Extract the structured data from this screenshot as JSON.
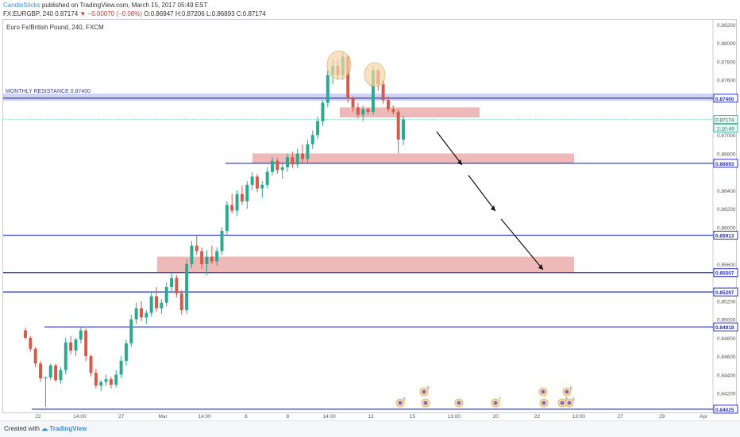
{
  "header": {
    "author": "CandleSticks",
    "published": "published on TradingView.com, March 15, 2017 05:49 EST",
    "symbol": "FX:EURGBP, 240",
    "price": "0.87174",
    "change": "▼ −0.00070 (−0.08%)",
    "ohlc": "O:0.86947 H:0.87206 L:0.86893 C:0.87174"
  },
  "plot_title": "Euro Fx/British Pound, 240, FXCM",
  "footer": {
    "created_with": "Created with",
    "brand": "TradingView"
  },
  "colors": {
    "up": "#29a98f",
    "down": "#d45a4a",
    "level_line": "#2530c8",
    "zone_fill": "#e8a2a2",
    "resistance_fill": "#aab0e8",
    "annotation_fill": "#f6d7a7"
  },
  "chart_data": {
    "type": "candlestick",
    "title": "Euro Fx/British Pound, 240, FXCM",
    "y_axis": {
      "range": [
        0.8399,
        0.8825
      ],
      "ticks": [
        "0.88200",
        "0.88000",
        "0.87800",
        "0.87600",
        "0.87000",
        "0.86800",
        "0.86400",
        "0.86200",
        "0.86000",
        "0.85600",
        "0.85200",
        "0.85000",
        "0.84800",
        "0.84600",
        "0.84400",
        "0.84200"
      ]
    },
    "x_axis": {
      "ticks": [
        "22",
        "14:00",
        "27",
        "Mar",
        "14:00",
        "6",
        "8",
        "14:00",
        "13",
        "15",
        "13:00",
        "20",
        "22",
        "13:00",
        "27",
        "29",
        "Apr"
      ]
    },
    "candles": [
      [
        0.8488,
        0.8491,
        0.8478,
        0.848
      ],
      [
        0.848,
        0.8482,
        0.8465,
        0.8468
      ],
      [
        0.8468,
        0.847,
        0.8448,
        0.8452
      ],
      [
        0.8452,
        0.8455,
        0.8432,
        0.8436
      ],
      [
        0.8436,
        0.8438,
        0.8405,
        0.8437
      ],
      [
        0.8437,
        0.8452,
        0.8434,
        0.845
      ],
      [
        0.845,
        0.8452,
        0.8432,
        0.8434
      ],
      [
        0.8434,
        0.8448,
        0.843,
        0.8445
      ],
      [
        0.8445,
        0.848,
        0.844,
        0.8475
      ],
      [
        0.8475,
        0.8482,
        0.8462,
        0.8466
      ],
      [
        0.8466,
        0.848,
        0.846,
        0.8478
      ],
      [
        0.8478,
        0.8492,
        0.8474,
        0.8488
      ],
      [
        0.8488,
        0.849,
        0.8455,
        0.846
      ],
      [
        0.846,
        0.8462,
        0.8438,
        0.8442
      ],
      [
        0.8442,
        0.8446,
        0.8425,
        0.8428
      ],
      [
        0.8428,
        0.8434,
        0.8422,
        0.8432
      ],
      [
        0.8432,
        0.844,
        0.8428,
        0.8435
      ],
      [
        0.8435,
        0.8438,
        0.8425,
        0.8429
      ],
      [
        0.8429,
        0.8445,
        0.8426,
        0.844
      ],
      [
        0.844,
        0.846,
        0.8436,
        0.8455
      ],
      [
        0.8455,
        0.8478,
        0.845,
        0.8474
      ],
      [
        0.8474,
        0.8505,
        0.847,
        0.85
      ],
      [
        0.85,
        0.8518,
        0.8495,
        0.8512
      ],
      [
        0.8512,
        0.852,
        0.8498,
        0.8502
      ],
      [
        0.8502,
        0.851,
        0.8495,
        0.8507
      ],
      [
        0.8507,
        0.853,
        0.8503,
        0.8525
      ],
      [
        0.8525,
        0.8535,
        0.8508,
        0.8512
      ],
      [
        0.8512,
        0.8522,
        0.8506,
        0.8518
      ],
      [
        0.8518,
        0.854,
        0.8514,
        0.8535
      ],
      [
        0.8535,
        0.855,
        0.853,
        0.8545
      ],
      [
        0.8545,
        0.8548,
        0.8524,
        0.8528
      ],
      [
        0.8528,
        0.8532,
        0.8505,
        0.851
      ],
      [
        0.851,
        0.8565,
        0.8506,
        0.856
      ],
      [
        0.856,
        0.8585,
        0.8556,
        0.858
      ],
      [
        0.858,
        0.8592,
        0.857,
        0.8574
      ],
      [
        0.8574,
        0.8578,
        0.8555,
        0.856
      ],
      [
        0.856,
        0.8575,
        0.8548,
        0.8568
      ],
      [
        0.8568,
        0.858,
        0.856,
        0.8563
      ],
      [
        0.8563,
        0.8578,
        0.8558,
        0.8574
      ],
      [
        0.8574,
        0.86,
        0.857,
        0.8596
      ],
      [
        0.8596,
        0.8628,
        0.8592,
        0.8624
      ],
      [
        0.8624,
        0.8636,
        0.8615,
        0.8618
      ],
      [
        0.8618,
        0.864,
        0.8612,
        0.8636
      ],
      [
        0.8636,
        0.8645,
        0.8624,
        0.8628
      ],
      [
        0.8628,
        0.865,
        0.862,
        0.8646
      ],
      [
        0.8646,
        0.866,
        0.864,
        0.8655
      ],
      [
        0.8655,
        0.8658,
        0.8638,
        0.8642
      ],
      [
        0.8642,
        0.865,
        0.8632,
        0.8646
      ],
      [
        0.8646,
        0.8665,
        0.8642,
        0.866
      ],
      [
        0.866,
        0.8676,
        0.8656,
        0.8672
      ],
      [
        0.8672,
        0.8675,
        0.8658,
        0.8662
      ],
      [
        0.8662,
        0.867,
        0.8652,
        0.8665
      ],
      [
        0.8665,
        0.868,
        0.866,
        0.8676
      ],
      [
        0.8676,
        0.8682,
        0.8664,
        0.8668
      ],
      [
        0.8668,
        0.8685,
        0.8664,
        0.868
      ],
      [
        0.868,
        0.869,
        0.867,
        0.8674
      ],
      [
        0.8674,
        0.8695,
        0.867,
        0.869
      ],
      [
        0.869,
        0.8705,
        0.8685,
        0.87
      ],
      [
        0.87,
        0.872,
        0.8696,
        0.8715
      ],
      [
        0.8715,
        0.8738,
        0.871,
        0.8735
      ],
      [
        0.8735,
        0.877,
        0.873,
        0.8765
      ],
      [
        0.8765,
        0.8782,
        0.8755,
        0.8775
      ],
      [
        0.8775,
        0.8782,
        0.876,
        0.8765
      ],
      [
        0.8765,
        0.879,
        0.876,
        0.8785
      ],
      [
        0.8785,
        0.8786,
        0.8735,
        0.874
      ],
      [
        0.874,
        0.8742,
        0.8725,
        0.873
      ],
      [
        0.873,
        0.8735,
        0.8718,
        0.8722
      ],
      [
        0.8722,
        0.8732,
        0.8715,
        0.8728
      ],
      [
        0.8728,
        0.873,
        0.8722,
        0.8725
      ],
      [
        0.8725,
        0.8775,
        0.8722,
        0.877
      ],
      [
        0.877,
        0.8772,
        0.8748,
        0.8755
      ],
      [
        0.8755,
        0.876,
        0.8734,
        0.8738
      ],
      [
        0.8738,
        0.8742,
        0.8725,
        0.8728
      ],
      [
        0.8728,
        0.8732,
        0.8722,
        0.8725
      ],
      [
        0.8725,
        0.8728,
        0.868,
        0.8695
      ],
      [
        0.8695,
        0.8721,
        0.8689,
        0.8717
      ]
    ],
    "horizontal_levels": [
      {
        "price": 0.874,
        "label": "0.87400"
      },
      {
        "price": 0.86693,
        "label": "0.86693"
      },
      {
        "price": 0.85913,
        "label": "0.85913"
      },
      {
        "price": 0.85507,
        "label": "0.85507"
      },
      {
        "price": 0.85297,
        "label": "0.85297"
      },
      {
        "price": 0.84918,
        "label": "0.84918"
      },
      {
        "price": 0.84025,
        "label": "0.84025"
      }
    ],
    "current_price": {
      "label": "0.87174",
      "countdown": "2:10:49"
    },
    "resistance_band": {
      "label": "MONTHLY RESISTANCE 0.87400",
      "top": 0.8745,
      "bottom": 0.8737
    },
    "zones": [
      {
        "top": 0.873,
        "bottom": 0.8719
      },
      {
        "top": 0.868,
        "bottom": 0.8669
      },
      {
        "top": 0.8568,
        "bottom": 0.8551
      }
    ],
    "event_markers": [
      "6",
      "5",
      "",
      "",
      "7",
      "",
      "",
      "8",
      "6",
      "6"
    ]
  }
}
